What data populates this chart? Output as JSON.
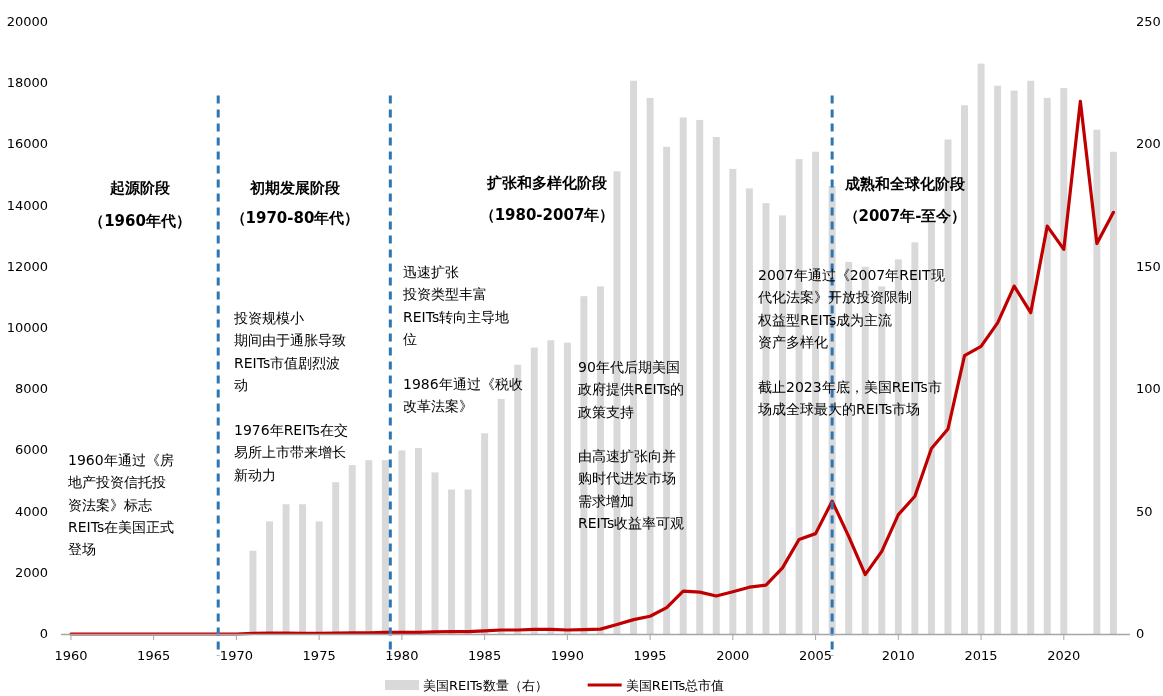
{
  "chart_data": {
    "type": "bar",
    "series": [
      {
        "name": "美国REITs数量（右）",
        "axis": "y2",
        "color": "#d9d9d9",
        "x": [
          1971,
          1972,
          1973,
          1974,
          1975,
          1976,
          1977,
          1978,
          1979,
          1980,
          1981,
          1982,
          1983,
          1984,
          1985,
          1986,
          1987,
          1988,
          1989,
          1990,
          1991,
          1992,
          1993,
          1994,
          1995,
          1996,
          1997,
          1998,
          1999,
          2000,
          2001,
          2002,
          2003,
          2004,
          2005,
          2006,
          2007,
          2008,
          2009,
          2010,
          2011,
          2012,
          2013,
          2014,
          2015,
          2016,
          2017,
          2018,
          2019,
          2020,
          2022,
          2023
        ],
        "values": [
          34,
          46,
          53,
          53,
          46,
          62,
          69,
          71,
          71,
          75,
          76,
          66,
          59,
          59,
          82,
          96,
          110,
          117,
          120,
          119,
          138,
          142,
          189,
          226,
          219,
          199,
          211,
          210,
          203,
          190,
          182,
          176,
          171,
          194,
          197,
          183,
          152,
          150,
          142,
          153,
          160,
          168,
          202,
          216,
          233,
          224,
          222,
          226,
          219,
          223,
          206,
          197
        ]
      },
      {
        "name": "美国REITs总市值",
        "type": "line",
        "color": "#c00000",
        "x": [
          1960,
          1961,
          1962,
          1963,
          1964,
          1965,
          1966,
          1967,
          1968,
          1969,
          1970,
          1971,
          1972,
          1973,
          1974,
          1975,
          1976,
          1977,
          1978,
          1979,
          1980,
          1981,
          1982,
          1983,
          1984,
          1985,
          1986,
          1987,
          1988,
          1989,
          1990,
          1991,
          1992,
          1993,
          1994,
          1995,
          1996,
          1997,
          1998,
          1999,
          2000,
          2001,
          2002,
          2003,
          2004,
          2005,
          2006,
          2007,
          2008,
          2009,
          2010,
          2011,
          2012,
          2013,
          2014,
          2015,
          2016,
          2017,
          2018,
          2019,
          2020,
          2021,
          2022,
          2023
        ],
        "values": [
          0,
          0,
          0,
          0,
          0,
          0,
          0,
          0,
          0,
          0,
          0,
          20,
          30,
          30,
          20,
          20,
          30,
          40,
          40,
          50,
          50,
          50,
          70,
          80,
          80,
          100,
          130,
          130,
          150,
          150,
          130,
          140,
          160,
          310,
          470,
          580,
          860,
          1400,
          1370,
          1240,
          1380,
          1530,
          1600,
          2160,
          3090,
          3280,
          4340,
          3190,
          1940,
          2700,
          3900,
          4500,
          6060,
          6700,
          9100,
          9400,
          10170,
          11370,
          10500,
          13330,
          12570,
          17410,
          12760,
          13780
        ]
      }
    ],
    "xlim": [
      1959.4,
      2024
    ],
    "xticks": [
      1960,
      1965,
      1970,
      1975,
      1980,
      1985,
      1990,
      1995,
      2000,
      2005,
      2010,
      2015,
      2020
    ],
    "ylim": [
      0,
      20000
    ],
    "yticks": [
      0,
      2000,
      4000,
      6000,
      8000,
      10000,
      12000,
      14000,
      16000,
      18000,
      20000
    ],
    "y2lim": [
      0,
      250
    ],
    "y2ticks": [
      0,
      50,
      100,
      150,
      200,
      250
    ],
    "ref_lines": [
      {
        "axis": "x",
        "value": 1968.9,
        "color": "#2e75b6",
        "line_style": "dashed"
      },
      {
        "axis": "x",
        "value": 1979.3,
        "color": "#2e75b6",
        "line_style": "dashed"
      },
      {
        "axis": "x",
        "value": 2006,
        "color": "#2e75b6",
        "line_style": "dashed"
      }
    ],
    "annotations": [
      "起源阶段",
      "（1960年代）",
      "初期发展阶段",
      "（1970-80年代）",
      "扩张和多样化阶段",
      "（1980-2007年）",
      "成熟和全球化阶段",
      "（2007年-至今）",
      "1960年通过《房地产投资信托投资法案》标志REITs在美国正式登场",
      "投资规模小期间由于通胀导致REITs市值剧烈波动",
      "1976年REITs在交易所上市带来增长新动力",
      "迅速扩张投资类型丰富REITs转向主导地位",
      "1986年通过《税收改革法案》",
      "90年代后期美国政府提供REITs的政策支持",
      "由高速扩张向并购时代进发市场需求增加REITs收益率可观",
      "2007年通过《2007年REIT现代化法案》开放投资限制权益型REITs成为主流资产多样化",
      "截止2023年底，美国REITs市场成全球最大的REITs市场"
    ],
    "legend": "bottom",
    "grid": false,
    "marker": "none",
    "line_style": "solid"
  }
}
